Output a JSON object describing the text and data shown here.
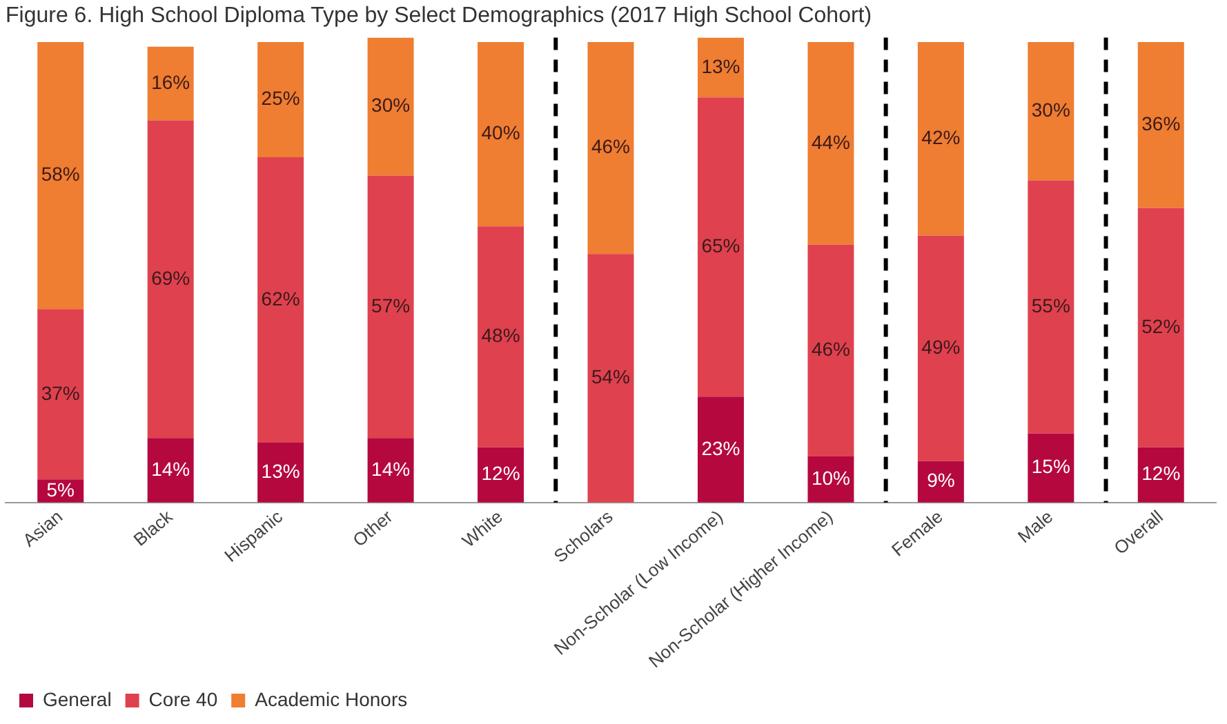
{
  "chart_data": {
    "type": "bar",
    "stacked": true,
    "title": "Figure 6. High School Diploma Type by Select Demographics (2017 High School Cohort)",
    "categories": [
      "Asian",
      "Black",
      "Hispanic",
      "Other",
      "White",
      "Scholars",
      "Non-Scholar (Low Income)",
      "Non-Scholar (Higher Income)",
      "Female",
      "Male",
      "Overall"
    ],
    "series": [
      {
        "name": "General",
        "color": "#b5083f",
        "values": [
          5,
          14,
          13,
          14,
          12,
          0,
          23,
          10,
          9,
          15,
          12
        ],
        "value_labels": [
          "5%",
          "14%",
          "13%",
          "14%",
          "12%",
          null,
          "23%",
          "10%",
          "9%",
          "15%",
          "12%"
        ]
      },
      {
        "name": "Core 40",
        "color": "#e0414f",
        "values": [
          37,
          69,
          62,
          57,
          48,
          54,
          65,
          46,
          49,
          55,
          52
        ],
        "value_labels": [
          "37%",
          "69%",
          "62%",
          "57%",
          "48%",
          "54%",
          "65%",
          "46%",
          "49%",
          "55%",
          "52%"
        ]
      },
      {
        "name": "Academic Honors",
        "color": "#ef7d32",
        "values": [
          58,
          16,
          25,
          30,
          40,
          46,
          13,
          44,
          42,
          30,
          36
        ],
        "value_labels": [
          "58%",
          "16%",
          "25%",
          "30%",
          "40%",
          "46%",
          "13%",
          "44%",
          "42%",
          "30%",
          "36%"
        ]
      }
    ],
    "ylim": [
      0,
      101
    ],
    "tick_labels": "x",
    "grid": false,
    "legend": "bottom left"
  }
}
